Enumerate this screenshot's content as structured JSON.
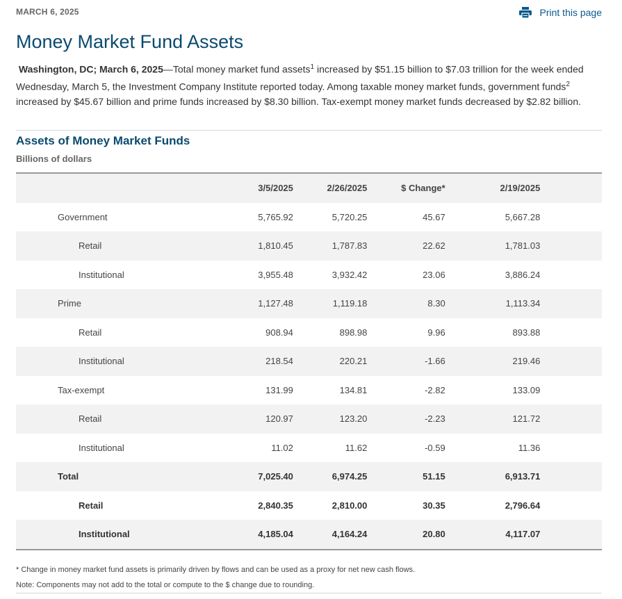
{
  "header": {
    "date": "MARCH 6, 2025",
    "print_label": "Print this page"
  },
  "title": "Money Market Fund Assets",
  "intro": {
    "dateline": "Washington, DC; March 6, 2025",
    "text1": "—Total money market fund assets",
    "fn1": "1",
    "text2": " increased by $51.15 billion to $7.03 trillion for the week ended Wednesday, March 5, the Investment Company Institute reported today. Among taxable money market funds, government funds",
    "fn2": "2",
    "text3": " increased by $45.67 billion and prime funds increased by $8.30 billion. Tax-exempt money market funds decreased by $2.82 billion."
  },
  "table": {
    "title": "Assets of Money Market Funds",
    "units": "Billions of dollars",
    "columns": [
      "",
      "3/5/2025",
      "2/26/2025",
      "$ Change*",
      "2/19/2025"
    ],
    "rows": [
      {
        "label": "Government",
        "values": [
          "5,765.92",
          "5,720.25",
          "45.67",
          "5,667.28"
        ]
      },
      {
        "label": "Retail",
        "values": [
          "1,810.45",
          "1,787.83",
          "22.62",
          "1,781.03"
        ]
      },
      {
        "label": "Institutional",
        "values": [
          "3,955.48",
          "3,932.42",
          "23.06",
          "3,886.24"
        ]
      },
      {
        "label": "Prime",
        "values": [
          "1,127.48",
          "1,119.18",
          "8.30",
          "1,113.34"
        ]
      },
      {
        "label": "Retail",
        "values": [
          "908.94",
          "898.98",
          "9.96",
          "893.88"
        ]
      },
      {
        "label": "Institutional",
        "values": [
          "218.54",
          "220.21",
          "-1.66",
          "219.46"
        ]
      },
      {
        "label": "Tax-exempt",
        "values": [
          "131.99",
          "134.81",
          "-2.82",
          "133.09"
        ]
      },
      {
        "label": "Retail",
        "values": [
          "120.97",
          "123.20",
          "-2.23",
          "121.72"
        ]
      },
      {
        "label": "Institutional",
        "values": [
          "11.02",
          "11.62",
          "-0.59",
          "11.36"
        ]
      },
      {
        "label": "Total",
        "values": [
          "7,025.40",
          "6,974.25",
          "51.15",
          "6,913.71"
        ]
      },
      {
        "label": "Retail",
        "values": [
          "2,840.35",
          "2,810.00",
          "30.35",
          "2,796.64"
        ]
      },
      {
        "label": "Institutional",
        "values": [
          "4,185.04",
          "4,164.24",
          "20.80",
          "4,117.07"
        ]
      }
    ]
  },
  "notes": [
    "* Change in money market fund assets is primarily driven by flows and can be used as a proxy for net new cash flows.",
    "Note: Components may not add to the total or compute to the $ change due to rounding."
  ],
  "colors": {
    "title": "#0b4a6f",
    "link": "#0b5a8c",
    "stripe": "#f2f2f2"
  }
}
